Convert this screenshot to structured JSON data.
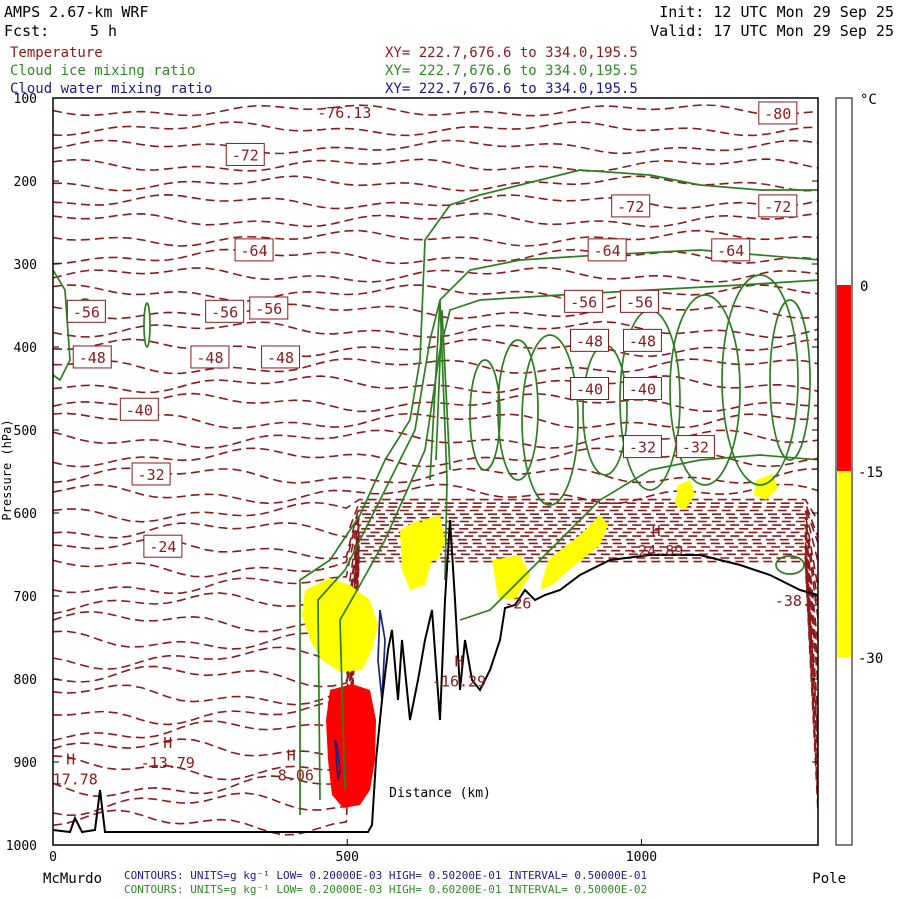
{
  "header": {
    "model": "AMPS 2.67-km WRF",
    "fcst_label": "Fcst:",
    "fcst_value": "5 h",
    "init": "Init: 12 UTC Mon 29 Sep 25",
    "valid": "Valid: 17 UTC Mon 29 Sep 25"
  },
  "fields": [
    {
      "name": "Temperature",
      "xy": "XY= 222.7,676.6 to 334.0,195.5",
      "color": "#8b1a1a"
    },
    {
      "name": "Cloud ice mixing ratio",
      "xy": "XY= 222.7,676.6 to 334.0,195.5",
      "color": "#2e8b22"
    },
    {
      "name": "Cloud water mixing ratio",
      "xy": "XY= 222.7,676.6 to 334.0,195.5",
      "color": "#1a1a8b"
    }
  ],
  "colors": {
    "temp_contour": "#8b1a1a",
    "ice_contour": "#2e7d22",
    "water_contour": "#1a237e",
    "fill_red": "#ff0000",
    "fill_yellow": "#ffff00",
    "terrain": "#000000"
  },
  "chart_data": {
    "type": "cross-section",
    "xlabel": "Distance (km)",
    "ylabel": "Pressure (hPa)",
    "xlim": [
      0,
      1300
    ],
    "ylim": [
      1000,
      100
    ],
    "x_ticks": [
      "0",
      "500",
      "1000"
    ],
    "x_tick_values": [
      0,
      500,
      1000
    ],
    "y_ticks": [
      "100",
      "200",
      "300",
      "400",
      "500",
      "600",
      "700",
      "800",
      "900",
      "1000"
    ],
    "y_tick_values": [
      100,
      200,
      300,
      400,
      500,
      600,
      700,
      800,
      900,
      1000
    ],
    "endpoints": {
      "left": "McMurdo",
      "right": "Pole"
    },
    "colorbar": {
      "unit": "°C",
      "ticks": [
        "0",
        "-15",
        "-30"
      ],
      "bands": [
        {
          "from": 0,
          "to": -15,
          "color": "#ff0000"
        },
        {
          "from": -15,
          "to": -30,
          "color": "#ffff00"
        }
      ]
    },
    "temperature_labels": [
      {
        "text": "-80",
        "x": 1230,
        "p": 118
      },
      {
        "text": "-72",
        "x": 325,
        "p": 168
      },
      {
        "text": "-72",
        "x": 980,
        "p": 230
      },
      {
        "text": "-72",
        "x": 1230,
        "p": 230
      },
      {
        "text": "-64",
        "x": 340,
        "p": 283
      },
      {
        "text": "-64",
        "x": 940,
        "p": 283
      },
      {
        "text": "-64",
        "x": 1150,
        "p": 283
      },
      {
        "text": "-56",
        "x": 55,
        "p": 357
      },
      {
        "text": "-56",
        "x": 290,
        "p": 357
      },
      {
        "text": "-56",
        "x": 365,
        "p": 353
      },
      {
        "text": "-56",
        "x": 900,
        "p": 345
      },
      {
        "text": "-56",
        "x": 995,
        "p": 345
      },
      {
        "text": "-48",
        "x": 65,
        "p": 412
      },
      {
        "text": "-48",
        "x": 265,
        "p": 412
      },
      {
        "text": "-48",
        "x": 385,
        "p": 412
      },
      {
        "text": "-48",
        "x": 910,
        "p": 392
      },
      {
        "text": "-48",
        "x": 1000,
        "p": 392
      },
      {
        "text": "-40",
        "x": 145,
        "p": 475
      },
      {
        "text": "-40",
        "x": 910,
        "p": 450
      },
      {
        "text": "-40",
        "x": 1000,
        "p": 450
      },
      {
        "text": "-32",
        "x": 165,
        "p": 553
      },
      {
        "text": "-32",
        "x": 1000,
        "p": 520
      },
      {
        "text": "-32",
        "x": 1090,
        "p": 520
      },
      {
        "text": "-24",
        "x": 185,
        "p": 640
      }
    ],
    "extrema": [
      {
        "text": "H",
        "value": "-17.78",
        "x": 30,
        "p": 915
      },
      {
        "text": "H",
        "value": "-13.79",
        "x": 195,
        "p": 895
      },
      {
        "text": "H",
        "value": "-8.06",
        "x": 405,
        "p": 910
      },
      {
        "text": "H",
        "value": "-16.29",
        "x": 690,
        "p": 797
      },
      {
        "text": "H",
        "value": "-24.89",
        "x": 1025,
        "p": 640
      },
      {
        "text": "",
        "value": "-38.3",
        "x": 1265,
        "p": 700
      },
      {
        "text": "",
        "value": "-76.13",
        "x": 495,
        "p": 112
      },
      {
        "text": "",
        "value": "-26",
        "x": 790,
        "p": 703
      }
    ]
  },
  "footer": {
    "units_line1": "CONTOURS:  UNITS=g kg⁻¹  LOW= 0.20000E-03  HIGH= 0.50200E-01  INTERVAL=  0.50000E-01",
    "units_line2": "CONTOURS:  UNITS=g kg⁻¹  LOW= 0.20000E-03  HIGH= 0.60200E-01  INTERVAL=  0.50000E-02"
  }
}
